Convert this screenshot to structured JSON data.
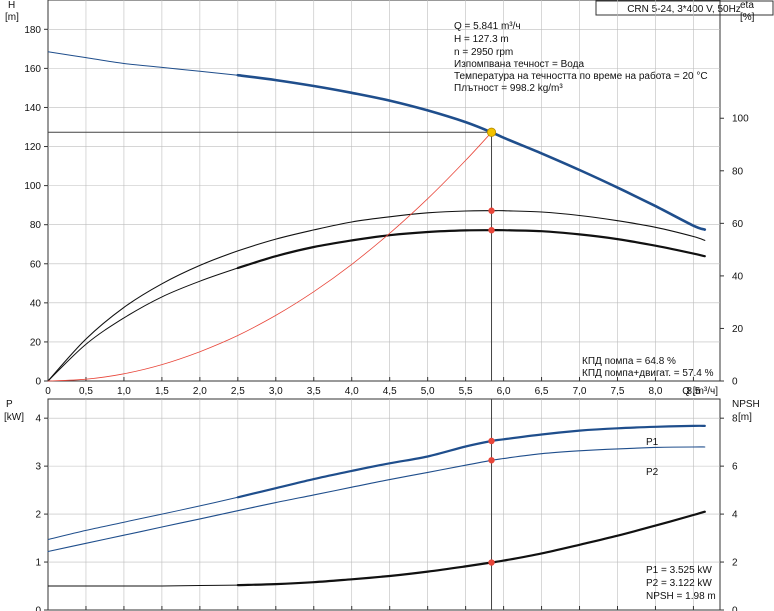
{
  "title_box": "CRN 5-24, 3*400 V, 50Hz",
  "colors": {
    "blue": "#1f4e8c",
    "black": "#111111",
    "red": "#e8463a",
    "operating_point": "#f2c200"
  },
  "top_panel": {
    "left_axis": {
      "title": "H",
      "unit": "[m]",
      "ticks": [
        0,
        20,
        40,
        60,
        80,
        100,
        120,
        140,
        160,
        180
      ]
    },
    "right_axis": {
      "title": "eta",
      "unit": "[%]",
      "ticks": [
        0,
        20,
        40,
        60,
        80,
        100
      ]
    },
    "x_axis": {
      "label": "Q [m³/ч]",
      "ticks": [
        "0",
        "0,5",
        "1,0",
        "1,5",
        "2,0",
        "2,5",
        "3,0",
        "3,5",
        "4,0",
        "4,5",
        "5,0",
        "5,5",
        "6,0",
        "6,5",
        "7,0",
        "7,5",
        "8,0",
        "8,5"
      ]
    },
    "info_lines": [
      "Q = 5.841 m³/ч",
      "H = 127.3 m",
      "n = 2950 rpm",
      "Изпомпвана течност = Вода",
      "Температура на течността по време на работа = 20 °C",
      "Плътност = 998.2 kg/m³"
    ],
    "eff_lines": [
      "КПД помпа = 64.8 %",
      "КПД помпа+двигат. = 57.4 %"
    ]
  },
  "bottom_panel": {
    "left_axis": {
      "title": "P",
      "unit": "[kW]",
      "ticks": [
        0,
        1,
        2,
        3,
        4
      ]
    },
    "right_axis": {
      "title": "NPSH",
      "unit": "[m]",
      "ticks": [
        0,
        2,
        4,
        6,
        8
      ]
    },
    "series_labels": [
      "P1",
      "P2"
    ],
    "info_lines": [
      "P1 = 3.525 kW",
      "P2 = 3.122 kW",
      "NPSH = 1.98 m"
    ]
  },
  "chart_data": [
    {
      "type": "line",
      "panel": "top",
      "xlim": [
        0,
        8.85
      ],
      "ylim": [
        0,
        195
      ],
      "y2lim": [
        0,
        145
      ],
      "grid": true,
      "operating_point": {
        "q": 5.841,
        "h": 127.3,
        "eta_pump": 64.8,
        "eta_total": 57.4
      },
      "series": [
        {
          "key": "h",
          "axis": "left",
          "color": "#1f4e8c",
          "width": 2.6,
          "thin_until": 2.5,
          "x": [
            0,
            0.5,
            1.0,
            1.5,
            2.0,
            2.5,
            3.0,
            3.5,
            4.0,
            4.5,
            5.0,
            5.5,
            5.841,
            6.0,
            6.5,
            7.0,
            7.5,
            8.0,
            8.5,
            8.65
          ],
          "y": [
            168.5,
            165.5,
            162.5,
            160.5,
            158.5,
            156.5,
            154.0,
            151.0,
            147.5,
            143.5,
            138.5,
            132.5,
            127.3,
            124.5,
            116.5,
            108.0,
            99.0,
            89.5,
            79.5,
            77.5
          ]
        },
        {
          "key": "eta_pump",
          "axis": "right",
          "color": "#111111",
          "width": 1.1,
          "x": [
            0,
            0.5,
            1.0,
            1.5,
            2.0,
            2.5,
            3.0,
            3.5,
            4.0,
            4.5,
            5.0,
            5.5,
            5.841,
            6.0,
            6.5,
            7.0,
            7.5,
            8.0,
            8.5,
            8.65
          ],
          "y": [
            0,
            16,
            28,
            37,
            44,
            49.5,
            54,
            57.5,
            60.5,
            62.5,
            64,
            64.7,
            64.8,
            64.8,
            64.3,
            63,
            61,
            58.5,
            55,
            53.5
          ]
        },
        {
          "key": "eta_total",
          "axis": "right",
          "color": "#111111",
          "width": 2.2,
          "thin_until": 2.5,
          "x": [
            0,
            0.5,
            1.0,
            1.5,
            2.0,
            2.5,
            3.0,
            3.5,
            4.0,
            4.5,
            5.0,
            5.5,
            5.841,
            6.0,
            6.5,
            7.0,
            7.5,
            8.0,
            8.5,
            8.65
          ],
          "y": [
            0,
            14,
            24,
            32,
            38,
            43,
            47.5,
            51,
            53.5,
            55.5,
            56.7,
            57.3,
            57.4,
            57.4,
            57,
            55.8,
            54,
            51.5,
            48.5,
            47.5
          ]
        },
        {
          "key": "system",
          "axis": "left",
          "color": "#e8463a",
          "width": 0.8,
          "x": [
            0,
            0.5,
            1.0,
            1.5,
            2.0,
            2.5,
            3.0,
            3.5,
            4.0,
            4.5,
            5.0,
            5.5,
            5.841
          ],
          "y": [
            0,
            0.9,
            3.7,
            8.4,
            15.0,
            23.3,
            33.6,
            45.7,
            59.7,
            75.6,
            93.3,
            112.9,
            127.3
          ]
        }
      ]
    },
    {
      "type": "line",
      "panel": "bottom",
      "xlim": [
        0,
        8.85
      ],
      "ylim": [
        0,
        4.4
      ],
      "y2lim": [
        0,
        8.8
      ],
      "grid": true,
      "operating_point": {
        "q": 5.841,
        "p1": 3.525,
        "p2": 3.122,
        "npsh": 1.98
      },
      "series": [
        {
          "key": "p1",
          "name": "P1",
          "axis": "left",
          "color": "#1f4e8c",
          "width": 2.2,
          "thin_until": 2.5,
          "x": [
            0,
            0.5,
            1.0,
            1.5,
            2.0,
            2.5,
            3.0,
            3.5,
            4.0,
            4.5,
            5.0,
            5.5,
            5.841,
            6.0,
            6.5,
            7.0,
            7.5,
            8.0,
            8.5,
            8.65
          ],
          "y": [
            1.47,
            1.66,
            1.83,
            2.0,
            2.17,
            2.35,
            2.54,
            2.73,
            2.9,
            3.06,
            3.2,
            3.41,
            3.525,
            3.56,
            3.66,
            3.74,
            3.79,
            3.82,
            3.84,
            3.84
          ]
        },
        {
          "key": "p2",
          "name": "P2",
          "axis": "left",
          "color": "#1f4e8c",
          "width": 1.1,
          "x": [
            0,
            0.5,
            1.0,
            1.5,
            2.0,
            2.5,
            3.0,
            3.5,
            4.0,
            4.5,
            5.0,
            5.5,
            5.841,
            6.0,
            6.5,
            7.0,
            7.5,
            8.0,
            8.5,
            8.65
          ],
          "y": [
            1.22,
            1.39,
            1.56,
            1.73,
            1.9,
            2.07,
            2.24,
            2.4,
            2.56,
            2.72,
            2.87,
            3.02,
            3.122,
            3.16,
            3.26,
            3.32,
            3.36,
            3.39,
            3.4,
            3.4
          ]
        },
        {
          "key": "npsh",
          "axis": "right",
          "color": "#111111",
          "width": 2.2,
          "thin_until": 2.5,
          "x": [
            0,
            0.5,
            1.0,
            1.5,
            2.0,
            2.5,
            3.0,
            3.5,
            4.0,
            4.5,
            5.0,
            5.5,
            5.841,
            6.0,
            6.5,
            7.0,
            7.5,
            8.0,
            8.5,
            8.65
          ],
          "y": [
            1.0,
            1.0,
            1.0,
            1.0,
            1.02,
            1.04,
            1.08,
            1.16,
            1.28,
            1.42,
            1.6,
            1.82,
            1.98,
            2.06,
            2.36,
            2.72,
            3.1,
            3.52,
            3.96,
            4.1
          ]
        }
      ]
    }
  ]
}
